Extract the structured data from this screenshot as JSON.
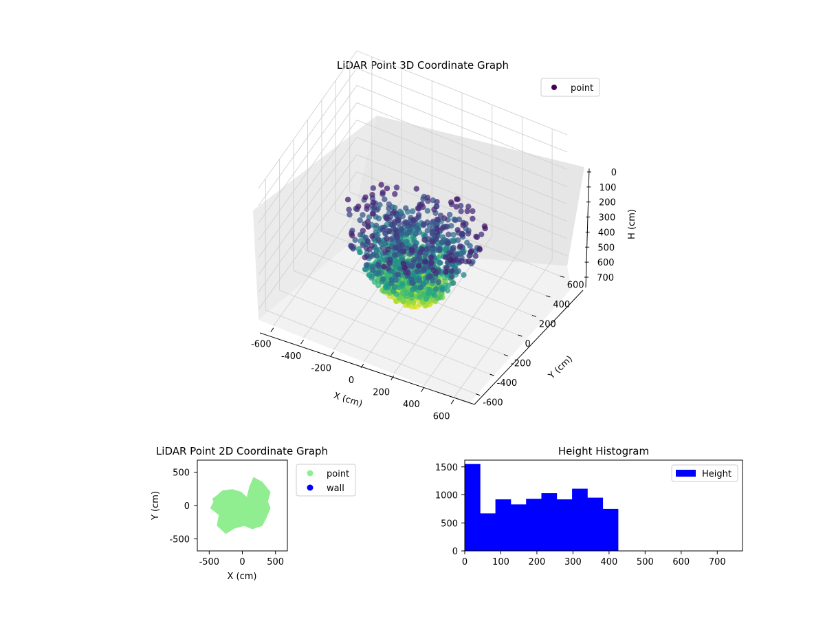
{
  "chart_data": [
    {
      "type": "scatter",
      "projection": "3d",
      "title": "LiDAR Point 3D Coordinate Graph",
      "xlabel": "X (cm)",
      "ylabel": "Y (cm)",
      "zlabel": "H (cm)",
      "xlim": [
        -700,
        700
      ],
      "ylim": [
        -700,
        700
      ],
      "zlim": [
        0,
        760
      ],
      "z_inverted": true,
      "xticks": [
        "-600",
        "-400",
        "-200",
        "0",
        "200",
        "400",
        "600"
      ],
      "yticks": [
        "-600",
        "-400",
        "-200",
        "0",
        "200",
        "400",
        "600"
      ],
      "zticks": [
        "0",
        "100",
        "200",
        "300",
        "400",
        "500",
        "600",
        "700"
      ],
      "colormap": "viridis",
      "color_by": "H",
      "legend": {
        "entries": [
          "point"
        ],
        "placement": "upper-right",
        "marker_color": "#440154"
      },
      "grid": true,
      "series": [
        {
          "name": "point",
          "shape": "bowl",
          "x_range": [
            -450,
            450
          ],
          "y_range": [
            -420,
            420
          ],
          "h_range": [
            0,
            420
          ],
          "note_points_near_rim": "top at H≈0, bottom at H≈420"
        }
      ]
    },
    {
      "type": "scatter",
      "title": "LiDAR Point 2D Coordinate Graph",
      "xlabel": "X (cm)",
      "ylabel": "Y (cm)",
      "xlim": [
        -680,
        680
      ],
      "ylim": [
        -680,
        680
      ],
      "xticks": [
        "-500",
        "0",
        "500"
      ],
      "yticks": [
        "-500",
        "0",
        "500"
      ],
      "legend": {
        "entries": [
          "point",
          "wall"
        ],
        "placement": "outside-right"
      },
      "series": [
        {
          "name": "point",
          "color": "#90ee90",
          "shape": "filled-blob",
          "x_range": [
            -450,
            450
          ],
          "y_range": [
            -420,
            420
          ]
        },
        {
          "name": "wall",
          "color": "#0000ff",
          "points": []
        }
      ]
    },
    {
      "type": "bar",
      "title": "Height Histogram",
      "xlim": [
        0,
        770
      ],
      "ylim": [
        0,
        1620
      ],
      "xticks": [
        "0",
        "100",
        "200",
        "300",
        "400",
        "500",
        "600",
        "700"
      ],
      "yticks": [
        "0",
        "500",
        "1000",
        "1500"
      ],
      "color": "#0000ff",
      "legend": {
        "entries": [
          "Height"
        ],
        "placement": "upper-right"
      },
      "bin_edges": [
        0,
        42.5,
        85,
        127.5,
        170,
        212.5,
        255,
        297.5,
        340,
        382.5,
        425
      ],
      "counts": [
        1550,
        670,
        920,
        830,
        930,
        1030,
        920,
        1110,
        950,
        750
      ],
      "series": [
        {
          "name": "Height",
          "values": [
            1550,
            670,
            920,
            830,
            930,
            1030,
            920,
            1110,
            950,
            750
          ]
        }
      ]
    }
  ]
}
